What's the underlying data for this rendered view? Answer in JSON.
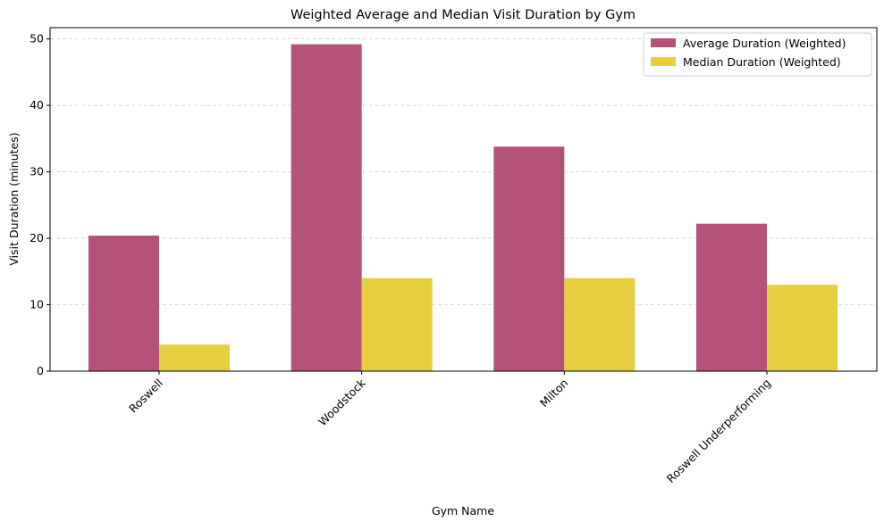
{
  "chart_data": {
    "type": "bar",
    "title": "Weighted Average and Median Visit Duration by Gym",
    "xlabel": "Gym Name",
    "ylabel": "Visit Duration (minutes)",
    "categories": [
      "Roswell",
      "Woodstock",
      "Milton",
      "Roswell Underperforming"
    ],
    "series": [
      {
        "name": "Average Duration (Weighted)",
        "values": [
          20.4,
          49.2,
          33.8,
          22.2
        ],
        "color": "#b5527a"
      },
      {
        "name": "Median Duration (Weighted)",
        "values": [
          4.0,
          14.0,
          14.0,
          13.0
        ],
        "color": "#e6ce40"
      }
    ],
    "ylim": [
      0,
      51.7
    ],
    "yticks": [
      0,
      10,
      20,
      30,
      40,
      50
    ],
    "grid": "y-dashed",
    "legend": "top-right"
  }
}
